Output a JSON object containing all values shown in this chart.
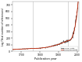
{
  "title": "",
  "xlabel": "Publication year",
  "ylabel": "Log (Total number of references)",
  "xlim": [
    1650,
    2010
  ],
  "ylim": [
    0,
    750
  ],
  "yticks": [
    0,
    100,
    200,
    300,
    400,
    500,
    600,
    700
  ],
  "xticks": [
    1700,
    1800,
    1900,
    2000
  ],
  "vlines": [
    1760,
    1950
  ],
  "vline_color": "#bbbbbb",
  "bg_color": "#ffffff",
  "line_color": "#333333",
  "smooth_color": "#cc2200",
  "legend_labels": [
    "annual data",
    "smoothed data"
  ],
  "legend_colors": [
    "#333333",
    "#cc2200"
  ]
}
